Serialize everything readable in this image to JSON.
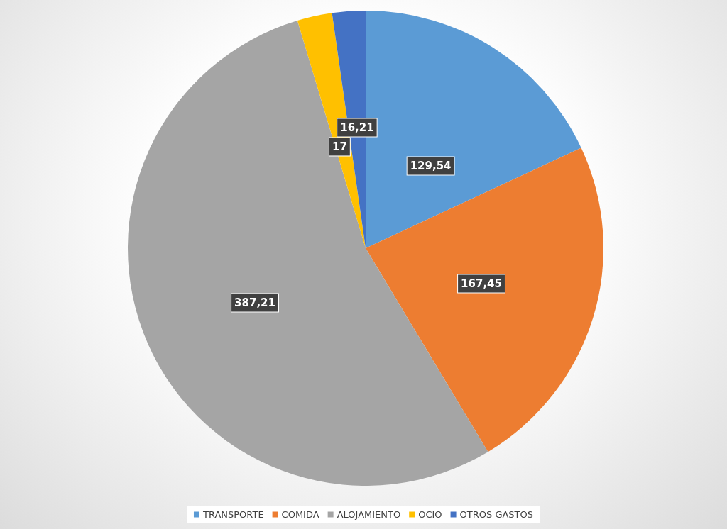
{
  "chart_data": {
    "type": "pie",
    "categories": [
      "TRANSPORTE",
      "COMIDA",
      "ALOJAMIENTO",
      "OCIO",
      "OTROS GASTOS"
    ],
    "values": [
      129.54,
      167.45,
      387.21,
      17,
      16.21
    ],
    "colors": [
      "#5b9bd5",
      "#ed7d31",
      "#a5a5a5",
      "#ffc000",
      "#4472c4"
    ],
    "value_labels": [
      "129,54",
      "167,45",
      "387,21",
      "17",
      "16,21"
    ],
    "legend": "bottom"
  }
}
